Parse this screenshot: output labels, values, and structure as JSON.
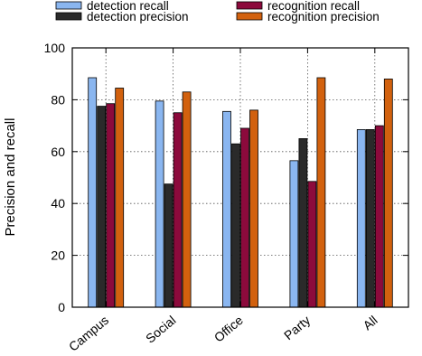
{
  "chart_data": {
    "type": "bar",
    "title": "",
    "xlabel": "",
    "ylabel": "Precision and recall",
    "ylim": [
      0,
      100
    ],
    "yticks": [
      0,
      20,
      40,
      60,
      80,
      100
    ],
    "grid": true,
    "legend_position": "top",
    "categories": [
      "Campus",
      "Social",
      "Office",
      "Party",
      "All"
    ],
    "series": [
      {
        "name": "detection recall",
        "color": "#8ab6f0",
        "values": [
          88.5,
          79.5,
          75.5,
          56.5,
          68.5
        ]
      },
      {
        "name": "detection precision",
        "color": "#2a2a2a",
        "values": [
          77.5,
          47.5,
          63.0,
          65.0,
          68.5
        ]
      },
      {
        "name": "recognition recall",
        "color": "#8c0a3c",
        "values": [
          78.5,
          75.0,
          69.0,
          48.5,
          70.0
        ]
      },
      {
        "name": "recognition precision",
        "color": "#d2610e",
        "values": [
          84.5,
          83.0,
          76.0,
          88.5,
          88.0
        ]
      }
    ]
  }
}
